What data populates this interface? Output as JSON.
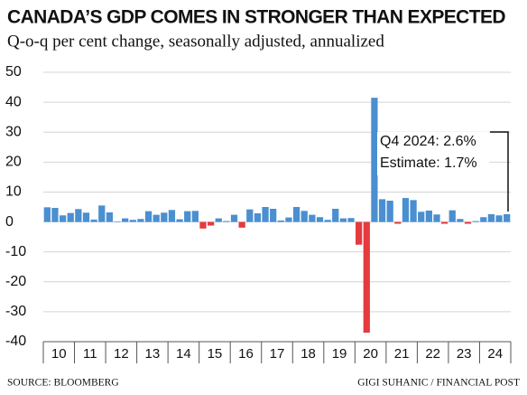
{
  "chart_data": {
    "type": "bar",
    "title": "CANADA’S GDP COMES IN STRONGER THAN EXPECTED",
    "subtitle": "Q-o-q per cent change, seasonally adjusted, annualized",
    "categories": [
      "10",
      null,
      null,
      null,
      "11",
      null,
      null,
      null,
      "12",
      null,
      null,
      null,
      "13",
      null,
      null,
      null,
      "14",
      null,
      null,
      null,
      "15",
      null,
      null,
      null,
      "16",
      null,
      null,
      null,
      "17",
      null,
      null,
      null,
      "18",
      null,
      null,
      null,
      "19",
      null,
      null,
      null,
      "20",
      null,
      null,
      null,
      "21",
      null,
      null,
      null,
      "22",
      null,
      null,
      null,
      "23",
      null,
      null,
      null,
      "24",
      null,
      null,
      null
    ],
    "values": [
      4.9,
      4.7,
      2.2,
      3.0,
      4.3,
      3.1,
      0.8,
      5.5,
      3.2,
      0.2,
      1.2,
      0.7,
      1.0,
      3.6,
      2.4,
      3.1,
      4.0,
      0.9,
      3.6,
      3.7,
      -2.2,
      -1.2,
      1.2,
      0.3,
      2.4,
      -1.9,
      4.2,
      2.9,
      5.0,
      4.4,
      0.5,
      1.5,
      5.0,
      3.7,
      2.4,
      1.6,
      0.7,
      4.4,
      1.2,
      1.3,
      -7.6,
      -37.0,
      41.5,
      7.6,
      7.1,
      -0.6,
      8.0,
      7.3,
      3.4,
      3.8,
      2.5,
      -0.6,
      3.9,
      1.0,
      -0.6,
      0.3,
      1.6,
      2.6,
      2.2,
      2.6
    ],
    "positive_color": "#4a8fd0",
    "negative_color": "#e53a3f",
    "ylim": [
      -40,
      50
    ],
    "yticks": [
      -40,
      -30,
      -20,
      -10,
      0,
      10,
      20,
      30,
      40,
      50
    ],
    "grid": true,
    "annotations": [
      "Q4 2024: 2.6%",
      "Estimate: 1.7%"
    ],
    "source": "SOURCE: BLOOMBERG",
    "credit": "GIGI SUHANIC / FINANCIAL POST"
  }
}
